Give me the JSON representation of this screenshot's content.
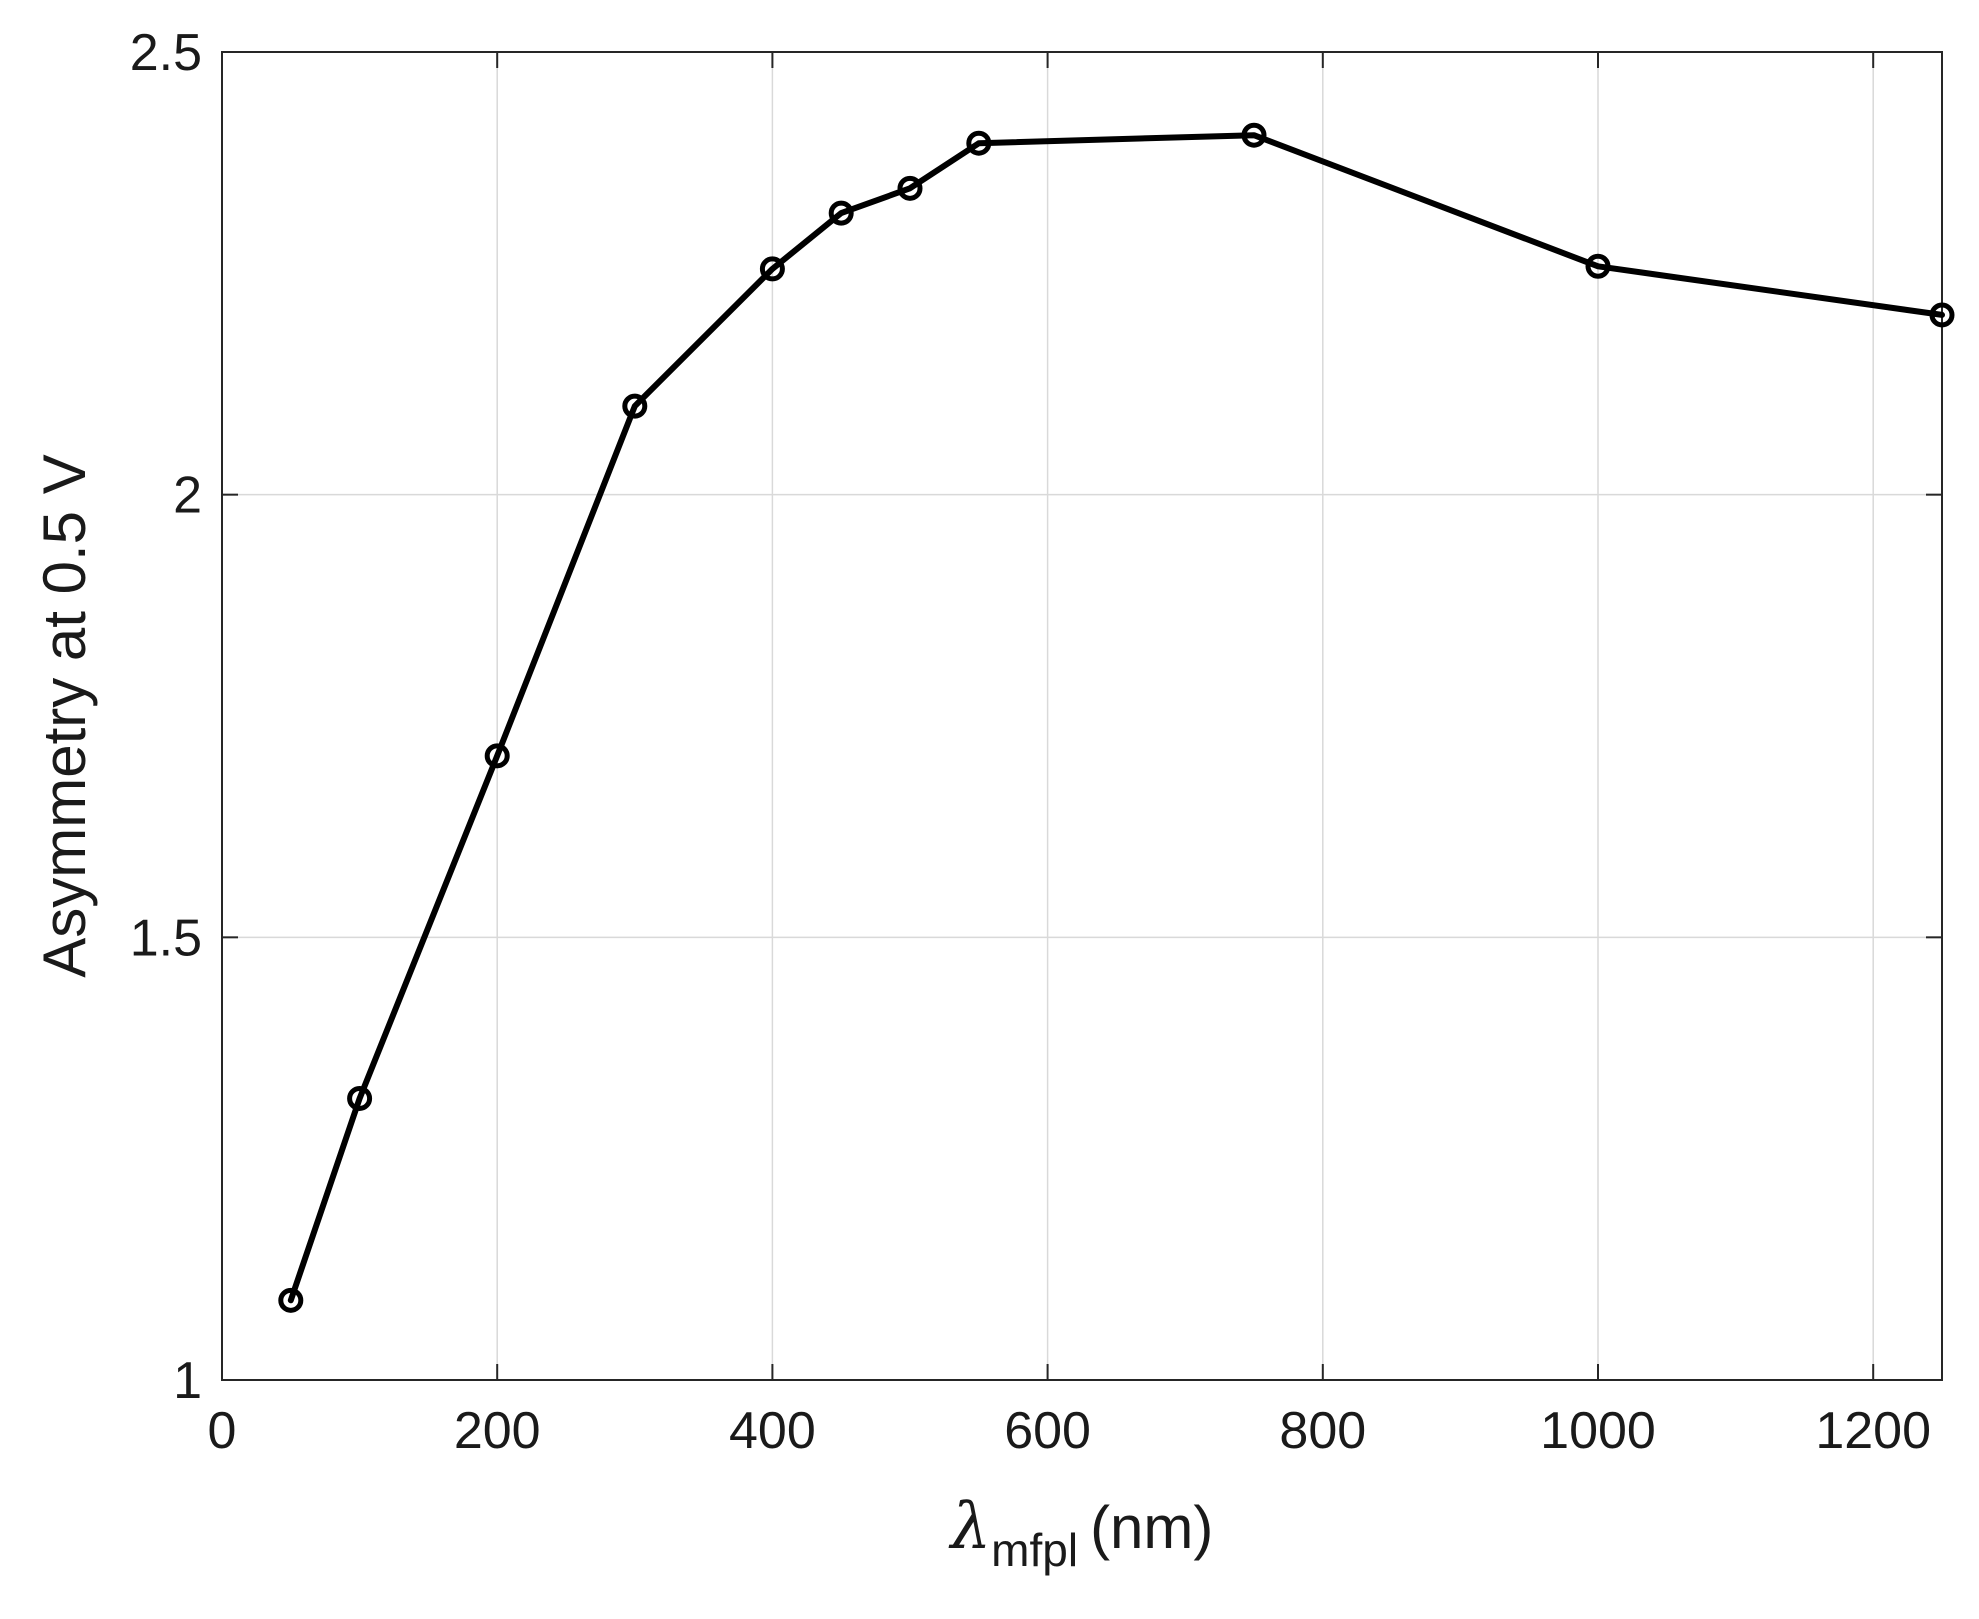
{
  "chart_data": {
    "type": "line",
    "title": "",
    "xlabel": {
      "symbol": "λ",
      "subscript": "mfpl",
      "unit": "(nm)"
    },
    "ylabel": "Asymmetry at 0.5 V",
    "xlim": [
      0,
      1250
    ],
    "ylim": [
      1,
      2.5
    ],
    "xticks": [
      0,
      200,
      400,
      600,
      800,
      1000,
      1200
    ],
    "yticks": [
      1,
      1.5,
      2,
      2.5
    ],
    "xtick_labels": [
      "0",
      "200",
      "400",
      "600",
      "800",
      "1000",
      "1200"
    ],
    "ytick_labels": [
      "1",
      "1.5",
      "2",
      "2.5"
    ],
    "grid": true,
    "marker": "circle",
    "line_color": "#000000",
    "grid_color": "#d9d9d9",
    "series": [
      {
        "x": [
          50,
          100,
          200,
          300,
          400,
          450,
          500,
          550,
          750,
          1000,
          1250
        ],
        "values": [
          1.09,
          1.318,
          1.705,
          2.1,
          2.255,
          2.318,
          2.346,
          2.397,
          2.406,
          2.258,
          2.203
        ]
      }
    ]
  }
}
